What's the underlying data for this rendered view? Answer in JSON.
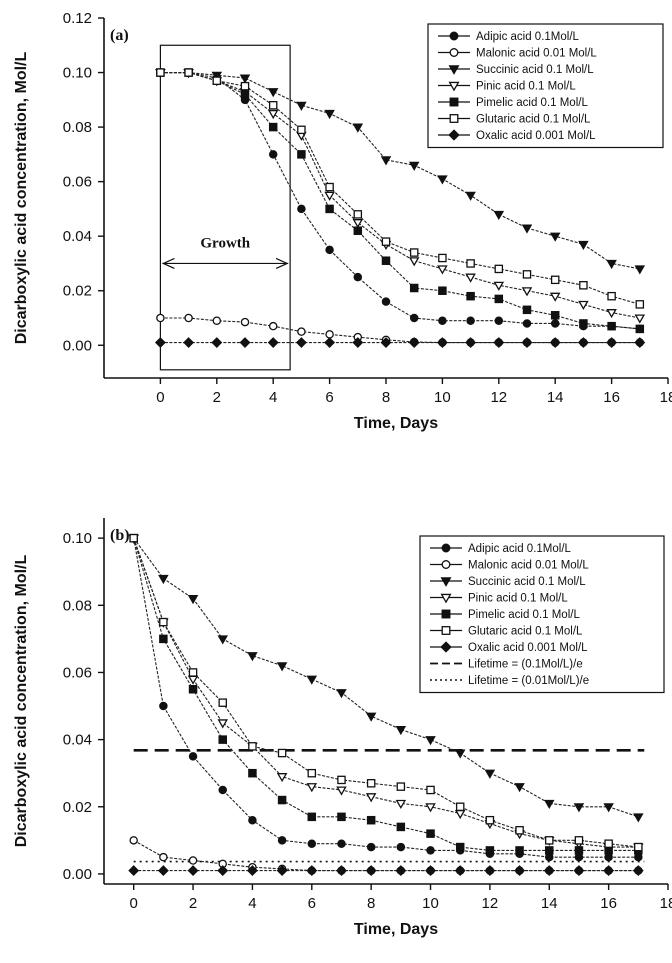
{
  "chart_data": [
    {
      "type": "line",
      "panel_label": "(a)",
      "xlabel": "Time, Days",
      "ylabel": "Dicarboxylic acid concentration, Mol/L",
      "xlim": [
        -2,
        18
      ],
      "ylim": [
        -0.012,
        0.12
      ],
      "xticks": [
        0,
        2,
        4,
        6,
        8,
        10,
        12,
        14,
        16,
        18
      ],
      "xtick_labels": [
        "0",
        "2",
        "4",
        "6",
        "8",
        "10",
        "12",
        "14",
        "16",
        "18"
      ],
      "yticks": [
        0.0,
        0.02,
        0.04,
        0.06,
        0.08,
        0.1,
        0.12
      ],
      "ytick_labels": [
        "0.00",
        "0.02",
        "0.04",
        "0.06",
        "0.08",
        "0.10",
        "0.12"
      ],
      "grid": false,
      "legend_position": "top-right",
      "annotation": {
        "text": "Growth",
        "box_x": [
          0,
          4.6
        ],
        "arrow_y": 0.03,
        "box_y": [
          -0.009,
          0.11
        ]
      },
      "series": [
        {
          "name": "Adipic acid 0.1Mol/L",
          "marker": "circle-filled",
          "x": [
            0,
            1,
            2,
            3,
            4,
            5,
            6,
            7,
            8,
            9,
            10,
            11,
            12,
            13,
            14,
            15,
            16,
            17
          ],
          "y": [
            0.1,
            0.1,
            0.098,
            0.09,
            0.07,
            0.05,
            0.035,
            0.025,
            0.016,
            0.01,
            0.009,
            0.009,
            0.009,
            0.008,
            0.008,
            0.007,
            0.007,
            0.006
          ]
        },
        {
          "name": "Malonic acid 0.01 Mol/L",
          "marker": "circle-open",
          "x": [
            0,
            1,
            2,
            3,
            4,
            5,
            6,
            7,
            8,
            9,
            10,
            11,
            12,
            13,
            14,
            15,
            16,
            17
          ],
          "y": [
            0.01,
            0.01,
            0.009,
            0.0085,
            0.007,
            0.005,
            0.004,
            0.003,
            0.002,
            0.0012,
            0.001,
            0.001,
            0.001,
            0.001,
            0.001,
            0.001,
            0.001,
            0.001
          ]
        },
        {
          "name": "Succinic acid 0.1 Mol/L",
          "marker": "triangle-down-filled",
          "x": [
            0,
            1,
            2,
            3,
            4,
            5,
            6,
            7,
            8,
            9,
            10,
            11,
            12,
            13,
            14,
            15,
            16,
            17
          ],
          "y": [
            0.1,
            0.1,
            0.099,
            0.098,
            0.093,
            0.088,
            0.085,
            0.08,
            0.068,
            0.066,
            0.061,
            0.055,
            0.048,
            0.043,
            0.04,
            0.037,
            0.03,
            0.028
          ]
        },
        {
          "name": "Pinic acid 0.1 Mol/L",
          "marker": "triangle-down-open",
          "x": [
            0,
            1,
            2,
            3,
            4,
            5,
            6,
            7,
            8,
            9,
            10,
            11,
            12,
            13,
            14,
            15,
            16,
            17
          ],
          "y": [
            0.1,
            0.1,
            0.097,
            0.093,
            0.085,
            0.077,
            0.055,
            0.045,
            0.037,
            0.031,
            0.028,
            0.025,
            0.022,
            0.02,
            0.018,
            0.015,
            0.012,
            0.01
          ]
        },
        {
          "name": "Pimelic acid 0.1 Mol/L",
          "marker": "square-filled",
          "x": [
            0,
            1,
            2,
            3,
            4,
            5,
            6,
            7,
            8,
            9,
            10,
            11,
            12,
            13,
            14,
            15,
            16,
            17
          ],
          "y": [
            0.1,
            0.1,
            0.097,
            0.092,
            0.08,
            0.07,
            0.05,
            0.042,
            0.031,
            0.021,
            0.02,
            0.018,
            0.017,
            0.013,
            0.011,
            0.008,
            0.007,
            0.006
          ]
        },
        {
          "name": "Glutaric acid 0.1 Mol/L",
          "marker": "square-open",
          "x": [
            0,
            1,
            2,
            3,
            4,
            5,
            6,
            7,
            8,
            9,
            10,
            11,
            12,
            13,
            14,
            15,
            16,
            17
          ],
          "y": [
            0.1,
            0.1,
            0.097,
            0.095,
            0.088,
            0.079,
            0.058,
            0.048,
            0.038,
            0.034,
            0.032,
            0.03,
            0.028,
            0.026,
            0.024,
            0.022,
            0.018,
            0.015
          ]
        },
        {
          "name": "Oxalic acid 0.001 Mol/L",
          "marker": "diamond-filled",
          "x": [
            0,
            1,
            2,
            3,
            4,
            5,
            6,
            7,
            8,
            9,
            10,
            11,
            12,
            13,
            14,
            15,
            16,
            17
          ],
          "y": [
            0.001,
            0.001,
            0.001,
            0.001,
            0.001,
            0.001,
            0.001,
            0.001,
            0.001,
            0.001,
            0.001,
            0.001,
            0.001,
            0.001,
            0.001,
            0.001,
            0.001,
            0.001
          ]
        }
      ]
    },
    {
      "type": "line",
      "panel_label": "(b)",
      "xlabel": "Time, Days",
      "ylabel": "Dicarboxylic acid concentration, Mol/L",
      "xlim": [
        -1,
        18
      ],
      "ylim": [
        -0.003,
        0.106
      ],
      "xticks": [
        0,
        2,
        4,
        6,
        8,
        10,
        12,
        14,
        16,
        18
      ],
      "xtick_labels": [
        "0",
        "2",
        "4",
        "6",
        "8",
        "10",
        "12",
        "14",
        "16",
        "18"
      ],
      "yticks": [
        0.0,
        0.02,
        0.04,
        0.06,
        0.08,
        0.1
      ],
      "ytick_labels": [
        "0.00",
        "0.02",
        "0.04",
        "0.06",
        "0.08",
        "0.10"
      ],
      "grid": false,
      "legend_position": "top-right",
      "reference_lines": [
        {
          "name": "Lifetime = (0.1Mol/L)/e",
          "y": 0.0368,
          "style": "dashed"
        },
        {
          "name": "Lifetime = (0.01Mol/L)/e",
          "y": 0.00368,
          "style": "dotted"
        }
      ],
      "series": [
        {
          "name": "Adipic acid 0.1Mol/L",
          "marker": "circle-filled",
          "x": [
            0,
            1,
            2,
            3,
            4,
            5,
            6,
            7,
            8,
            9,
            10,
            11,
            12,
            13,
            14,
            15,
            16,
            17
          ],
          "y": [
            0.1,
            0.05,
            0.035,
            0.025,
            0.016,
            0.01,
            0.009,
            0.009,
            0.008,
            0.008,
            0.007,
            0.007,
            0.006,
            0.006,
            0.005,
            0.005,
            0.005,
            0.005
          ]
        },
        {
          "name": "Malonic acid 0.01 Mol/L",
          "marker": "circle-open",
          "x": [
            0,
            1,
            2,
            3,
            4,
            5,
            6,
            7,
            8,
            9,
            10,
            11,
            12,
            13,
            14,
            15,
            16,
            17
          ],
          "y": [
            0.01,
            0.005,
            0.004,
            0.003,
            0.002,
            0.0015,
            0.001,
            0.001,
            0.001,
            0.001,
            0.001,
            0.001,
            0.001,
            0.001,
            0.001,
            0.001,
            0.001,
            0.001
          ]
        },
        {
          "name": "Succinic acid 0.1 Mol/L",
          "marker": "triangle-down-filled",
          "x": [
            0,
            1,
            2,
            3,
            4,
            5,
            6,
            7,
            8,
            9,
            10,
            11,
            12,
            13,
            14,
            15,
            16,
            17
          ],
          "y": [
            0.1,
            0.088,
            0.082,
            0.07,
            0.065,
            0.062,
            0.058,
            0.054,
            0.047,
            0.043,
            0.04,
            0.036,
            0.03,
            0.026,
            0.021,
            0.02,
            0.02,
            0.017
          ]
        },
        {
          "name": "Pinic acid 0.1 Mol/L",
          "marker": "triangle-down-open",
          "x": [
            0,
            1,
            2,
            3,
            4,
            5,
            6,
            7,
            8,
            9,
            10,
            11,
            12,
            13,
            14,
            15,
            16,
            17
          ],
          "y": [
            0.1,
            0.075,
            0.058,
            0.045,
            0.038,
            0.029,
            0.026,
            0.025,
            0.023,
            0.021,
            0.02,
            0.018,
            0.015,
            0.012,
            0.01,
            0.009,
            0.008,
            0.008
          ]
        },
        {
          "name": "Pimelic acid 0.1 Mol/L",
          "marker": "square-filled",
          "x": [
            0,
            1,
            2,
            3,
            4,
            5,
            6,
            7,
            8,
            9,
            10,
            11,
            12,
            13,
            14,
            15,
            16,
            17
          ],
          "y": [
            0.1,
            0.07,
            0.055,
            0.04,
            0.03,
            0.022,
            0.017,
            0.017,
            0.016,
            0.014,
            0.012,
            0.008,
            0.007,
            0.007,
            0.007,
            0.007,
            0.007,
            0.007
          ]
        },
        {
          "name": "Glutaric acid 0.1 Mol/L",
          "marker": "square-open",
          "x": [
            0,
            1,
            2,
            3,
            4,
            5,
            6,
            7,
            8,
            9,
            10,
            11,
            12,
            13,
            14,
            15,
            16,
            17
          ],
          "y": [
            0.1,
            0.075,
            0.06,
            0.051,
            0.038,
            0.036,
            0.03,
            0.028,
            0.027,
            0.026,
            0.025,
            0.02,
            0.016,
            0.013,
            0.01,
            0.01,
            0.009,
            0.008
          ]
        },
        {
          "name": "Oxalic acid 0.001 Mol/L",
          "marker": "diamond-filled",
          "x": [
            0,
            1,
            2,
            3,
            4,
            5,
            6,
            7,
            8,
            9,
            10,
            11,
            12,
            13,
            14,
            15,
            16,
            17
          ],
          "y": [
            0.001,
            0.001,
            0.001,
            0.001,
            0.001,
            0.001,
            0.001,
            0.001,
            0.001,
            0.001,
            0.001,
            0.001,
            0.001,
            0.001,
            0.001,
            0.001,
            0.001,
            0.001
          ]
        }
      ]
    }
  ]
}
